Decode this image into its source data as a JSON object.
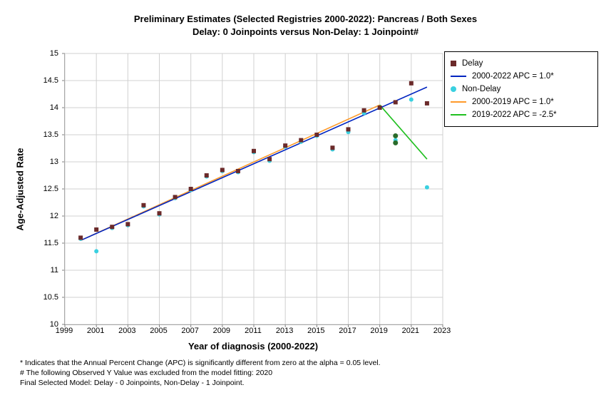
{
  "title_line1": "Preliminary Estimates (Selected Registries 2000-2022): Pancreas / Both Sexes",
  "title_line2": "Delay: 0 Joinpoints  versus  Non-Delay: 1 Joinpoint#",
  "axes": {
    "xlabel": "Year of diagnosis (2000-2022)",
    "ylabel": "Age-Adjusted Rate",
    "xlim": [
      1999,
      2023
    ],
    "ylim": [
      10,
      15
    ],
    "xticks": [
      1999,
      2001,
      2003,
      2005,
      2007,
      2009,
      2011,
      2013,
      2015,
      2017,
      2019,
      2021,
      2023
    ],
    "yticks": [
      10,
      10.5,
      11,
      11.5,
      12,
      12.5,
      13,
      13.5,
      14,
      14.5,
      15
    ],
    "grid_color": "#d0d0d0",
    "axis_color": "#808080",
    "tick_fontsize": 11,
    "label_fontsize": 13
  },
  "series": {
    "delay": {
      "marker": "square",
      "color": "#6b2a2a",
      "size": 6,
      "x": [
        2000,
        2001,
        2002,
        2003,
        2004,
        2005,
        2006,
        2007,
        2008,
        2009,
        2010,
        2011,
        2012,
        2013,
        2014,
        2015,
        2016,
        2017,
        2018,
        2019,
        2020,
        2021,
        2022
      ],
      "y": [
        11.6,
        11.75,
        11.8,
        11.85,
        12.2,
        12.05,
        12.35,
        12.5,
        12.75,
        12.85,
        12.83,
        13.2,
        13.05,
        13.3,
        13.4,
        13.5,
        13.26,
        13.6,
        13.95,
        14.0,
        14.1,
        14.45,
        14.08
      ]
    },
    "nondelay": {
      "marker": "circle",
      "color": "#3ad0e0",
      "size": 6,
      "x": [
        2000,
        2001,
        2002,
        2003,
        2004,
        2005,
        2006,
        2007,
        2008,
        2009,
        2010,
        2011,
        2012,
        2013,
        2014,
        2015,
        2016,
        2017,
        2018,
        2019,
        2020,
        2021,
        2022
      ],
      "y": [
        11.58,
        11.35,
        11.78,
        11.83,
        12.18,
        12.03,
        12.33,
        12.48,
        12.73,
        12.83,
        12.81,
        13.18,
        13.02,
        13.28,
        13.37,
        13.48,
        13.23,
        13.55,
        13.9,
        14.0,
        13.4,
        14.15,
        12.53
      ]
    },
    "delay_fit": {
      "type": "line",
      "color": "#0024c0",
      "width": 1.6,
      "x1": 2000,
      "y1": 11.55,
      "x2": 2022,
      "y2": 14.38
    },
    "nondelay_fit_seg1": {
      "type": "line",
      "color": "#ff9a2a",
      "width": 1.6,
      "x1": 2000,
      "y1": 11.55,
      "x2": 2019,
      "y2": 14.05
    },
    "nondelay_fit_seg2": {
      "type": "line",
      "color": "#20c020",
      "width": 1.6,
      "x1": 2019,
      "y1": 14.05,
      "x2": 2022,
      "y2": 13.05
    },
    "excluded_point": {
      "color": "#2a6b2a",
      "x": 2020,
      "y": 13.48,
      "ghost_y": 13.35
    }
  },
  "legend": {
    "items": [
      {
        "kind": "square",
        "color": "#6b2a2a",
        "label": "Delay"
      },
      {
        "kind": "line",
        "color": "#0024c0",
        "label": "2000-2022 APC = 1.0*"
      },
      {
        "kind": "circle",
        "color": "#3ad0e0",
        "label": "Non-Delay"
      },
      {
        "kind": "line",
        "color": "#ff9a2a",
        "label": "2000-2019 APC =  1.0*"
      },
      {
        "kind": "line",
        "color": "#20c020",
        "label": "2019-2022 APC = -2.5*"
      }
    ]
  },
  "footnote": {
    "line1": "* Indicates that the Annual Percent Change (APC) is significantly different from zero at the alpha = 0.05 level.",
    "line2": " # The following Observed Y Value was excluded from the model fitting:  2020",
    "line3": "Final Selected Model: Delay - 0 Joinpoints, Non-Delay - 1 Joinpoint."
  }
}
